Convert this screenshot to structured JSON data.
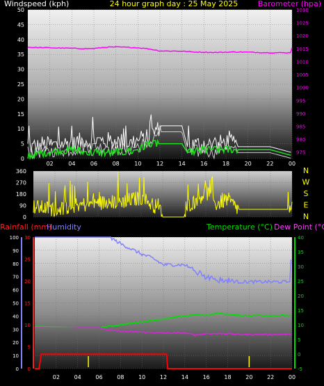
{
  "header": {
    "windspeed_label": "Windspeed (kph)",
    "title": "24 hour graph day : 25 May 2025",
    "barometer_label": "Barometer (hpa)"
  },
  "labels": {
    "rainfall": "Rainfall (mm)",
    "humidity": "Humidity",
    "temperature": "Temperature (°C)",
    "dew_point": "Dew Point (°C)"
  },
  "colors": {
    "windspeed": "#ffffff",
    "gust": "#cccccc",
    "avg_wind": "#20e020",
    "barometer": "#ff00ff",
    "direction": "#ffff00",
    "rainfall": "#ff0000",
    "humidity": "#8080ff",
    "temperature": "#00e000",
    "dew_point": "#e020e0",
    "hour_ticks": "#ffff00"
  },
  "chart_data": [
    {
      "type": "line",
      "x_ticks": [
        "02",
        "04",
        "06",
        "08",
        "10",
        "12",
        "14",
        "16",
        "18",
        "20",
        "22",
        "00"
      ],
      "y_left": {
        "ticks": [
          "0",
          "5",
          "10",
          "15",
          "20",
          "25",
          "30",
          "35",
          "40",
          "45",
          "50"
        ],
        "range": [
          0,
          50
        ]
      },
      "y_right": {
        "ticks": [
          "975",
          "980",
          "985",
          "990",
          "995",
          "1000",
          "1005",
          "1010",
          "1015",
          "1020",
          "1025",
          "1030"
        ],
        "range": [
          972.5,
          1030
        ]
      },
      "series": [
        {
          "hours": [
            0,
            4,
            5,
            7,
            9,
            11,
            12,
            14,
            14.5,
            16,
            17,
            18,
            19,
            22,
            24
          ],
          "values": [
            4,
            5,
            6,
            6,
            5,
            7,
            11,
            11,
            4,
            5,
            4,
            6,
            4,
            4,
            2
          ]
        },
        {
          "hours": [
            0,
            2,
            4,
            6,
            8,
            10,
            11,
            12,
            14,
            14.5,
            16,
            18,
            19,
            22,
            24
          ],
          "values": [
            1,
            2,
            3,
            2,
            2,
            3,
            5,
            5,
            5,
            2,
            3,
            3,
            3,
            3,
            1
          ]
        },
        {
          "hours": [
            0,
            2,
            4,
            5,
            6,
            7,
            8,
            9,
            10,
            11,
            12,
            14,
            15,
            16,
            17,
            18,
            19,
            20,
            21,
            22,
            23,
            23.9,
            24
          ],
          "values": [
            1015.5,
            1015.3,
            1015.1,
            1015.0,
            1015.0,
            1015.5,
            1015.6,
            1015.5,
            1015.3,
            1014.9,
            1014.1,
            1014.0,
            1013.7,
            1013.6,
            1013.5,
            1013.6,
            1013.7,
            1013.6,
            1013.5,
            1013.4,
            1013.4,
            1013.4,
            1015.3
          ]
        }
      ]
    },
    {
      "type": "line",
      "y_ticks": [
        "0",
        "90",
        "180",
        "270",
        "360"
      ],
      "compass": [
        "N",
        "W",
        "S",
        "E",
        "N"
      ],
      "range": [
        0,
        360
      ],
      "series": [
        {
          "hours": [
            0,
            2,
            4,
            6,
            8,
            10,
            11,
            11.8,
            12,
            14,
            14.2,
            15,
            16,
            17,
            18,
            19,
            24
          ],
          "values": [
            80,
            60,
            90,
            110,
            120,
            150,
            100,
            60,
            0,
            0,
            90,
            120,
            200,
            100,
            140,
            60,
            60
          ]
        }
      ]
    },
    {
      "type": "line",
      "x_ticks": [
        "02",
        "04",
        "06",
        "08",
        "10",
        "12",
        "14",
        "16",
        "18",
        "20",
        "22",
        "00"
      ],
      "humidity_axis": {
        "ticks": [
          "0",
          "10",
          "20",
          "30",
          "40",
          "50",
          "60",
          "70",
          "80",
          "90",
          "100"
        ],
        "range": [
          0,
          100
        ]
      },
      "rain_axis": {
        "ticks": [
          "0",
          "5",
          "10",
          "15",
          "20",
          "25",
          "30"
        ],
        "range": [
          0,
          30
        ]
      },
      "temp_axis": {
        "ticks": [
          "-5",
          "0",
          "5",
          "10",
          "15",
          "20",
          "25",
          "30",
          "35",
          "40"
        ],
        "range": [
          -5,
          40
        ]
      },
      "hour_tick_hours": [
        5,
        20
      ],
      "series": [
        {
          "hours": [
            0,
            7,
            8,
            9,
            10,
            11,
            12,
            13,
            14,
            15,
            16,
            17,
            18,
            19,
            23.8,
            24
          ],
          "values": [
            100,
            100,
            95,
            91,
            87,
            84,
            79,
            79,
            79,
            74,
            70,
            68,
            67,
            66,
            66,
            100
          ]
        },
        {
          "hours": [
            0,
            2,
            4,
            6,
            8,
            10,
            12,
            14,
            15,
            16,
            17,
            18,
            19,
            23.9,
            24
          ],
          "values": [
            9.5,
            9.3,
            9.0,
            9.0,
            10,
            11,
            12,
            13,
            13.5,
            13.2,
            14,
            13.5,
            13.2,
            13.2,
            6
          ]
        },
        {
          "hours": [
            0,
            2,
            4,
            6,
            7,
            8,
            10,
            12,
            14,
            15,
            16,
            18,
            19,
            23.9,
            24
          ],
          "values": [
            9,
            9,
            9,
            9,
            8,
            7.8,
            7.5,
            7.2,
            7.2,
            6.5,
            7,
            7,
            6.7,
            6.7,
            5
          ]
        },
        {
          "hours": [
            0,
            0.4,
            0.6,
            12.3,
            12.4,
            24
          ],
          "values": [
            0,
            0,
            3.3,
            3.3,
            0,
            0
          ]
        }
      ]
    }
  ]
}
